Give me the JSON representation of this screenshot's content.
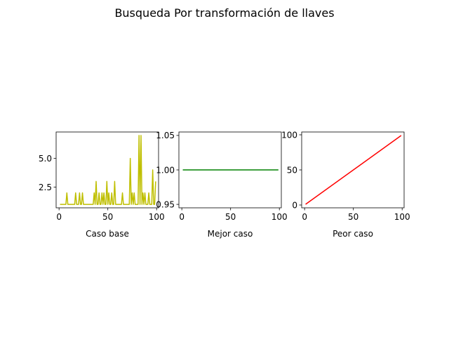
{
  "figure": {
    "title": "Busqueda Por transformación de llaves"
  },
  "chart_data": [
    {
      "type": "line",
      "xlabel": "Caso base",
      "ylabel": "",
      "xlim": [
        -3,
        102
      ],
      "ylim": [
        0.7,
        7.3
      ],
      "xticks": [
        0,
        50,
        100
      ],
      "xtick_labels": [
        "0",
        "50",
        "100"
      ],
      "yticks": [
        2.5,
        5.0
      ],
      "ytick_labels": [
        "2.5",
        "5.0"
      ],
      "grid": false,
      "series": [
        {
          "color": "#bfbf00",
          "x": [
            1,
            2,
            3,
            4,
            5,
            6,
            7,
            8,
            9,
            10,
            11,
            12,
            13,
            14,
            15,
            16,
            17,
            18,
            19,
            20,
            21,
            22,
            23,
            24,
            25,
            26,
            27,
            28,
            29,
            30,
            31,
            32,
            33,
            34,
            35,
            36,
            37,
            38,
            39,
            40,
            41,
            42,
            43,
            44,
            45,
            46,
            47,
            48,
            49,
            50,
            51,
            52,
            53,
            54,
            55,
            56,
            57,
            58,
            59,
            60,
            61,
            62,
            63,
            64,
            65,
            66,
            67,
            68,
            69,
            70,
            71,
            72,
            73,
            74,
            75,
            76,
            77,
            78,
            79,
            80,
            81,
            82,
            83,
            84,
            85,
            86,
            87,
            88,
            89,
            90,
            91,
            92,
            93,
            94,
            95,
            96,
            97,
            98,
            99
          ],
          "y": [
            1,
            1,
            1,
            1,
            1,
            1,
            1,
            2,
            1,
            1,
            1,
            1,
            1,
            1,
            1,
            1,
            2,
            1,
            1,
            1,
            2,
            1,
            1,
            2,
            1,
            1,
            1,
            1,
            1,
            1,
            1,
            1,
            1,
            1,
            1,
            2,
            1,
            3,
            1,
            1,
            2,
            1,
            1,
            2,
            1,
            2,
            1,
            1,
            3,
            1,
            2,
            1,
            1,
            2,
            1,
            1,
            3,
            1,
            1,
            1,
            1,
            1,
            1,
            1,
            2,
            1,
            1,
            1,
            1,
            1,
            1,
            1,
            5,
            1,
            2,
            1,
            2,
            1,
            1,
            1,
            1,
            7,
            1,
            7,
            1,
            2,
            1,
            2,
            1,
            1,
            1,
            2,
            1,
            1,
            1,
            4,
            1,
            1,
            3
          ]
        }
      ]
    },
    {
      "type": "line",
      "xlabel": "Mejor caso",
      "ylabel": "",
      "xlim": [
        -3,
        102
      ],
      "ylim": [
        0.945,
        1.055
      ],
      "xticks": [
        0,
        50,
        100
      ],
      "xtick_labels": [
        "0",
        "50",
        "100"
      ],
      "yticks": [
        0.95,
        1.0,
        1.05
      ],
      "ytick_labels": [
        "0.95",
        "1.00",
        "1.05"
      ],
      "grid": false,
      "series": [
        {
          "color": "#008000",
          "x": [
            1,
            99
          ],
          "y": [
            1,
            1
          ]
        }
      ]
    },
    {
      "type": "line",
      "xlabel": "Peor caso",
      "ylabel": "",
      "xlim": [
        -3,
        102
      ],
      "ylim": [
        -4,
        104
      ],
      "xticks": [
        0,
        50,
        100
      ],
      "xtick_labels": [
        "0",
        "50",
        "100"
      ],
      "yticks": [
        0,
        50,
        100
      ],
      "ytick_labels": [
        "0",
        "50",
        "100"
      ],
      "grid": false,
      "series": [
        {
          "color": "#ff0000",
          "x": [
            1,
            99
          ],
          "y": [
            1,
            99
          ]
        }
      ]
    }
  ]
}
